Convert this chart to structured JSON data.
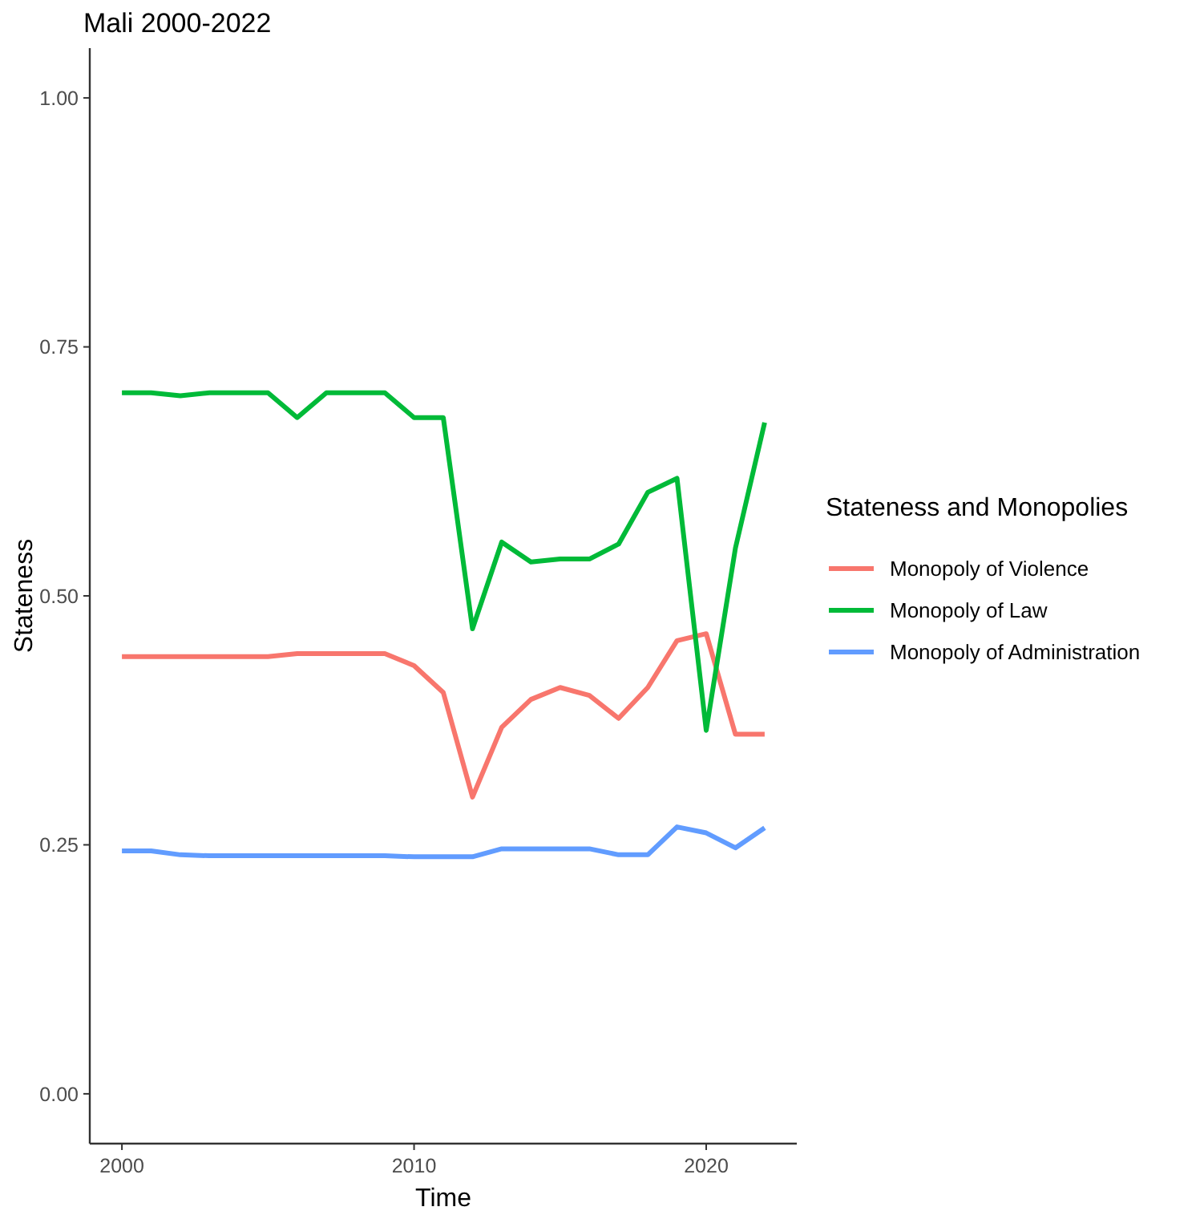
{
  "chart_data": {
    "type": "line",
    "title": "Mali 2000-2022",
    "xlabel": "Time",
    "ylabel": "Stateness",
    "legend_title": "Stateness and Monopolies",
    "legend": "right",
    "grid": false,
    "marker": "none",
    "line_style": "solid",
    "x": [
      2000,
      2001,
      2002,
      2003,
      2004,
      2005,
      2006,
      2007,
      2008,
      2009,
      2010,
      2011,
      2012,
      2013,
      2014,
      2015,
      2016,
      2017,
      2018,
      2019,
      2020,
      2021,
      2022
    ],
    "xlim": [
      1998.9,
      2023.1
    ],
    "xticks": [
      2000,
      2010,
      2020
    ],
    "ylim": [
      -0.05,
      1.05
    ],
    "yticks": [
      {
        "value": 0,
        "label": "0.00"
      },
      {
        "value": 0.25,
        "label": "0.25"
      },
      {
        "value": 0.5,
        "label": "0.50"
      },
      {
        "value": 0.75,
        "label": "0.75"
      },
      {
        "value": 1,
        "label": "1.00"
      }
    ],
    "series": [
      {
        "name": "Monopoly of Violence",
        "color": "#f8766d",
        "values": [
          0.439,
          0.439,
          0.439,
          0.439,
          0.439,
          0.439,
          0.442,
          0.442,
          0.442,
          0.442,
          0.43,
          0.403,
          0.298,
          0.368,
          0.396,
          0.408,
          0.4,
          0.377,
          0.408,
          0.455,
          0.462,
          0.361,
          0.361
        ]
      },
      {
        "name": "Monopoly of Law",
        "color": "#00ba38",
        "values": [
          0.704,
          0.704,
          0.701,
          0.704,
          0.704,
          0.704,
          0.679,
          0.704,
          0.704,
          0.704,
          0.679,
          0.679,
          0.467,
          0.554,
          0.534,
          0.537,
          0.537,
          0.552,
          0.604,
          0.618,
          0.365,
          0.548,
          0.674
        ]
      },
      {
        "name": "Monopoly of Administration",
        "color": "#619cff",
        "values": [
          0.244,
          0.244,
          0.24,
          0.239,
          0.239,
          0.239,
          0.239,
          0.239,
          0.239,
          0.239,
          0.238,
          0.238,
          0.238,
          0.246,
          0.246,
          0.246,
          0.246,
          0.24,
          0.24,
          0.268,
          0.262,
          0.247,
          0.267
        ]
      }
    ]
  }
}
